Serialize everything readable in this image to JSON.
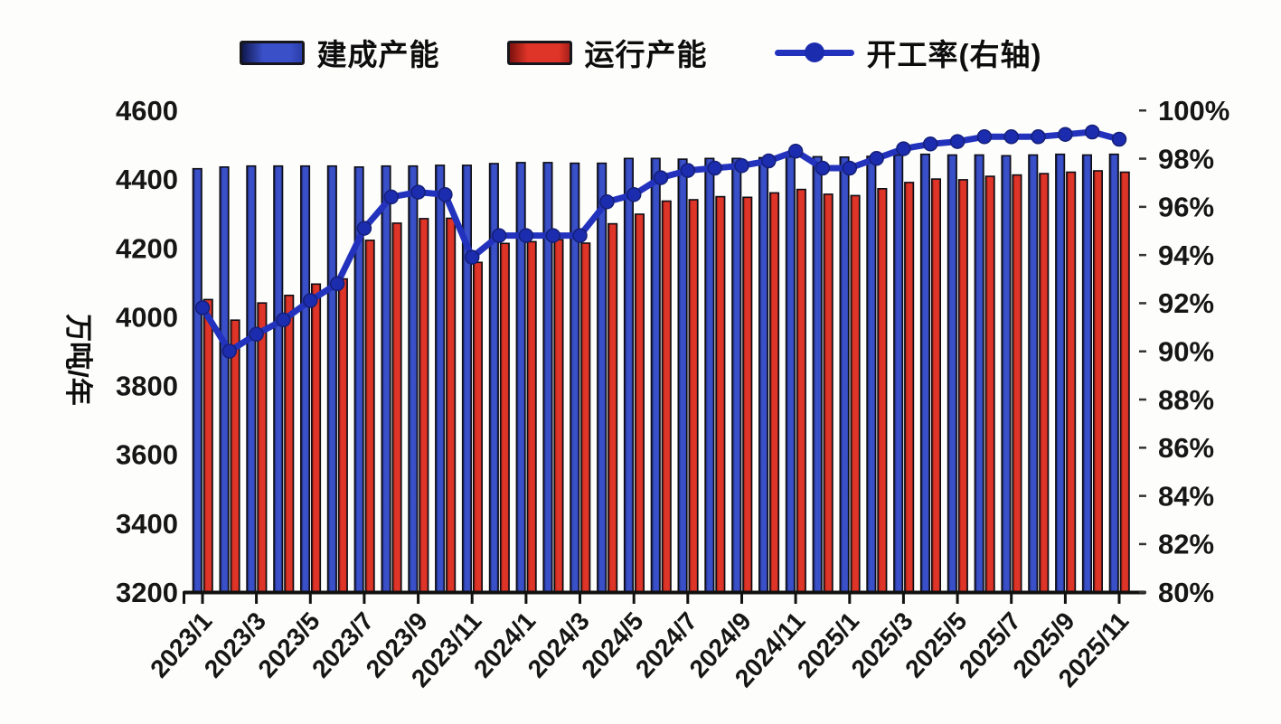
{
  "legend": {
    "items": [
      {
        "label": "建成产能",
        "type": "bar",
        "color": "#3a50c9"
      },
      {
        "label": "运行产能",
        "type": "bar",
        "color": "#df3528"
      },
      {
        "label": "开工率(右轴)",
        "type": "line",
        "color": "#2232bd"
      }
    ]
  },
  "colors": {
    "bar_blue": "#3a50c9",
    "bar_blue_dark": "#10194e",
    "bar_red": "#df3528",
    "bar_red_dark": "#7d120d",
    "line_blue": "#2232bd",
    "marker_blue": "#1c2cae",
    "axis_black": "#111111",
    "text_dark": "#161616",
    "background": "#fdfdfc"
  },
  "chart_data": {
    "type": "bar+line combo",
    "title": "",
    "ylabel_left": "万吨/年",
    "ylabel_right": "",
    "left_axis_ticks": [
      "4600",
      "4400",
      "4200",
      "4000",
      "3800",
      "3600",
      "3400",
      "3200"
    ],
    "right_axis_ticks": [
      "100%",
      "98%",
      "96%",
      "94%",
      "92%",
      "90%",
      "88%",
      "86%",
      "84%",
      "82%",
      "80%"
    ],
    "left_ylim": [
      3200,
      4600
    ],
    "right_ylim": [
      80,
      100
    ],
    "grid": false,
    "legend_position": "top",
    "x_tick_labels": [
      "2023/1",
      "2023/3",
      "2023/5",
      "2023/7",
      "2023/9",
      "2023/11",
      "2024/1",
      "2024/3",
      "2024/5",
      "2024/7",
      "2024/9",
      "2024/11",
      "2025/1",
      "2025/3",
      "2025/5",
      "2025/7",
      "2025/9",
      "2025/11"
    ],
    "categories": [
      "2023/1",
      "2023/2",
      "2023/3",
      "2023/4",
      "2023/5",
      "2023/6",
      "2023/7",
      "2023/8",
      "2023/9",
      "2023/10",
      "2023/11",
      "2023/12",
      "2024/1",
      "2024/2",
      "2024/3",
      "2024/4",
      "2024/5",
      "2024/6",
      "2024/7",
      "2024/8",
      "2024/9",
      "2024/10",
      "2024/11",
      "2024/12",
      "2025/1",
      "2025/2",
      "2025/3",
      "2025/4",
      "2025/5",
      "2025/6",
      "2025/7",
      "2025/8",
      "2025/9",
      "2025/10",
      "2025/11"
    ],
    "series": [
      {
        "name": "建成产能",
        "type": "bar",
        "axis": "left",
        "unit": "万吨/年",
        "values": [
          4430,
          4435,
          4438,
          4438,
          4438,
          4438,
          4435,
          4438,
          4438,
          4440,
          4440,
          4445,
          4448,
          4448,
          4446,
          4446,
          4460,
          4460,
          4458,
          4460,
          4460,
          4462,
          4465,
          4465,
          4464,
          4466,
          4470,
          4472,
          4470,
          4470,
          4468,
          4470,
          4472,
          4470,
          4472
        ]
      },
      {
        "name": "运行产能",
        "type": "bar",
        "axis": "left",
        "unit": "万吨/年",
        "values": [
          4050,
          3990,
          4040,
          4062,
          4095,
          4110,
          4222,
          4272,
          4285,
          4286,
          4158,
          4213,
          4218,
          4224,
          4214,
          4270,
          4298,
          4336,
          4340,
          4349,
          4347,
          4360,
          4370,
          4356,
          4352,
          4372,
          4390,
          4400,
          4398,
          4408,
          4412,
          4416,
          4420,
          4424,
          4420
        ]
      },
      {
        "name": "开工率(右轴)",
        "type": "line",
        "axis": "right",
        "unit": "%",
        "values": [
          91.8,
          90.0,
          90.7,
          91.3,
          92.1,
          92.8,
          95.1,
          96.4,
          96.6,
          96.5,
          93.9,
          94.8,
          94.8,
          94.8,
          94.8,
          96.2,
          96.5,
          97.2,
          97.5,
          97.6,
          97.7,
          97.9,
          98.3,
          97.6,
          97.6,
          98.0,
          98.4,
          98.6,
          98.7,
          98.9,
          98.9,
          98.9,
          99.0,
          99.1,
          98.8
        ]
      }
    ]
  }
}
